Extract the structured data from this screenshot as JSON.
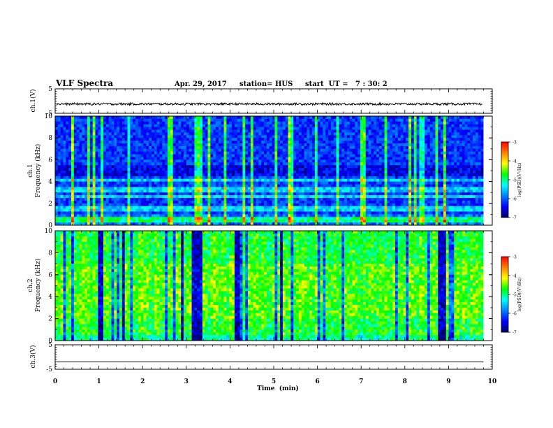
{
  "header": {
    "title": "VLF Spectra",
    "date": "Apr. 29, 2017",
    "station": "station= HUS",
    "start_ut": "start  UT =   7 : 30: 2"
  },
  "colors": {
    "background": "#ffffff",
    "axis": "#000000",
    "colormap": [
      "#000066",
      "#0000ff",
      "#0080ff",
      "#00ffff",
      "#00ff00",
      "#ffff00",
      "#ff8000",
      "#ff0000",
      "#ffffff"
    ]
  },
  "chart_data": [
    {
      "type": "line",
      "name": "ch1-waveform",
      "ylabel": "ch.1(V)",
      "ylim": [
        -5,
        5
      ],
      "yticks": [
        "5",
        "-5"
      ],
      "xlim": [
        0,
        9.8
      ],
      "description_level_V": -1.2,
      "grid": false
    },
    {
      "type": "heatmap",
      "name": "ch1-spectrogram",
      "ylabel": "ch.1\nFrequency (kHz)",
      "ylabel_line1": "ch.1",
      "ylabel_line2": "Frequency  (kHz)",
      "ylim": [
        0,
        10
      ],
      "yticks": [
        "0",
        "2",
        "4",
        "6",
        "8",
        "10"
      ],
      "xlim": [
        0,
        9.8
      ],
      "colorbar": {
        "label": "log(PSD)(V²/Hz)",
        "range": [
          -7,
          -3
        ],
        "ticks": [
          "-3",
          "-4",
          "-5",
          "-6",
          "-7"
        ]
      }
    },
    {
      "type": "heatmap",
      "name": "ch2-spectrogram",
      "ylabel_line1": "ch.2",
      "ylabel_line2": "Frequency  (kHz)",
      "ylim": [
        0,
        10
      ],
      "yticks": [
        "0",
        "2",
        "4",
        "6",
        "8",
        "10"
      ],
      "xlim": [
        0,
        9.8
      ],
      "colorbar": {
        "label": "log(PSD)(V²/Hz)",
        "range": [
          -7,
          -3
        ],
        "ticks": [
          "-3",
          "-4",
          "-5",
          "-6",
          "-7"
        ]
      }
    },
    {
      "type": "line",
      "name": "ch3-waveform",
      "ylabel": "ch.3(V)",
      "ylim": [
        -5,
        5
      ],
      "yticks": [
        "5",
        "-5"
      ],
      "xlim": [
        0,
        9.8
      ],
      "description_level_V": -2,
      "grid": false
    }
  ],
  "xaxis": {
    "label": "Time  (min)",
    "range": [
      0,
      10
    ],
    "ticks": [
      "0",
      "1",
      "2",
      "3",
      "4",
      "5",
      "6",
      "7",
      "8",
      "9",
      "10"
    ]
  }
}
